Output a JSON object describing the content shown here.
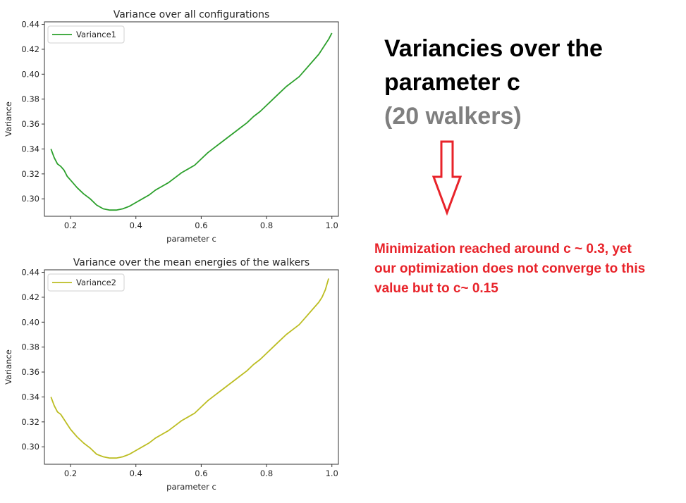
{
  "heading": {
    "line1": "Variancies over the",
    "line2": "parameter c",
    "line3": "(20 walkers)"
  },
  "note": {
    "line1": "Minimization reached around c ~ 0.3, yet",
    "line2": "our optimization does not converge to this",
    "line3": "value but to c~ 0.15"
  },
  "colors": {
    "variance1": "#2ca02c",
    "variance2": "#bcbd22",
    "note": "#e8232a",
    "arrow": "#e8232a"
  },
  "icons": {
    "arrow": "down-arrow-outline-icon"
  },
  "chart_data": [
    {
      "type": "line",
      "title": "Variance over all configurations",
      "xlabel": "parameter c",
      "ylabel": "Variance",
      "xlim": [
        0.12,
        1.02
      ],
      "ylim": [
        0.286,
        0.442
      ],
      "xticks": [
        "0.2",
        "0.4",
        "0.6",
        "0.8",
        "1.0"
      ],
      "yticks": [
        "0.30",
        "0.32",
        "0.34",
        "0.36",
        "0.38",
        "0.40",
        "0.42",
        "0.44"
      ],
      "legend": "top-left",
      "series": [
        {
          "name": "Variance1",
          "x": [
            0.14,
            0.15,
            0.16,
            0.17,
            0.18,
            0.19,
            0.2,
            0.22,
            0.24,
            0.26,
            0.28,
            0.3,
            0.32,
            0.34,
            0.36,
            0.38,
            0.4,
            0.42,
            0.44,
            0.46,
            0.48,
            0.5,
            0.52,
            0.54,
            0.56,
            0.58,
            0.6,
            0.62,
            0.64,
            0.66,
            0.68,
            0.7,
            0.72,
            0.74,
            0.76,
            0.78,
            0.8,
            0.82,
            0.84,
            0.86,
            0.88,
            0.9,
            0.92,
            0.94,
            0.96,
            0.98,
            0.99,
            1.0
          ],
          "values": [
            0.34,
            0.333,
            0.328,
            0.326,
            0.323,
            0.318,
            0.315,
            0.309,
            0.304,
            0.3,
            0.295,
            0.292,
            0.291,
            0.291,
            0.292,
            0.294,
            0.297,
            0.3,
            0.303,
            0.307,
            0.31,
            0.313,
            0.317,
            0.321,
            0.324,
            0.327,
            0.332,
            0.337,
            0.341,
            0.345,
            0.349,
            0.353,
            0.357,
            0.361,
            0.366,
            0.37,
            0.375,
            0.38,
            0.385,
            0.39,
            0.394,
            0.398,
            0.404,
            0.41,
            0.416,
            0.424,
            0.428,
            0.433
          ]
        }
      ]
    },
    {
      "type": "line",
      "title": "Variance over the mean energies of the walkers",
      "xlabel": "parameter c",
      "ylabel": "Variance",
      "xlim": [
        0.12,
        1.02
      ],
      "ylim": [
        0.286,
        0.442
      ],
      "xticks": [
        "0.2",
        "0.4",
        "0.6",
        "0.8",
        "1.0"
      ],
      "yticks": [
        "0.30",
        "0.32",
        "0.34",
        "0.36",
        "0.38",
        "0.40",
        "0.42",
        "0.44"
      ],
      "legend": "top-left",
      "series": [
        {
          "name": "Variance2",
          "x": [
            0.14,
            0.15,
            0.16,
            0.17,
            0.18,
            0.19,
            0.2,
            0.22,
            0.24,
            0.26,
            0.28,
            0.3,
            0.32,
            0.34,
            0.36,
            0.38,
            0.4,
            0.42,
            0.44,
            0.46,
            0.48,
            0.5,
            0.52,
            0.54,
            0.56,
            0.58,
            0.6,
            0.62,
            0.64,
            0.66,
            0.68,
            0.7,
            0.72,
            0.74,
            0.76,
            0.78,
            0.8,
            0.82,
            0.84,
            0.86,
            0.88,
            0.9,
            0.92,
            0.94,
            0.96,
            0.97,
            0.98,
            0.99
          ],
          "values": [
            0.34,
            0.333,
            0.328,
            0.326,
            0.322,
            0.318,
            0.314,
            0.308,
            0.303,
            0.299,
            0.294,
            0.292,
            0.291,
            0.291,
            0.292,
            0.294,
            0.297,
            0.3,
            0.303,
            0.307,
            0.31,
            0.313,
            0.317,
            0.321,
            0.324,
            0.327,
            0.332,
            0.337,
            0.341,
            0.345,
            0.349,
            0.353,
            0.357,
            0.361,
            0.366,
            0.37,
            0.375,
            0.38,
            0.385,
            0.39,
            0.394,
            0.398,
            0.404,
            0.41,
            0.416,
            0.42,
            0.426,
            0.435
          ]
        }
      ]
    }
  ]
}
